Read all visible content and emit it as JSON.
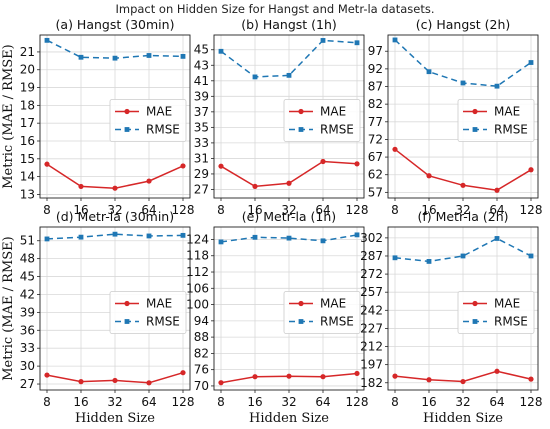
{
  "figure": {
    "suptitle": "Impact on Hidden Size for Hangst and Metr-la datasets.",
    "ylabel": "Metric (MAE / RMSE)",
    "xlabel": "Hidden Size"
  },
  "colors": {
    "mae": "#d62728",
    "rmse": "#1f77b4"
  },
  "chart_data": [
    {
      "type": "line",
      "title": "(a) Hangst (30min)",
      "categories": [
        "8",
        "16",
        "32",
        "64",
        "128"
      ],
      "series": [
        {
          "name": "MAE",
          "values": [
            14.7,
            13.45,
            13.35,
            13.75,
            14.6
          ]
        },
        {
          "name": "RMSE",
          "values": [
            21.65,
            20.7,
            20.65,
            20.8,
            20.75
          ]
        }
      ],
      "yticks": [
        13,
        14,
        15,
        16,
        17,
        18,
        19,
        20,
        21
      ],
      "ylim": [
        12.8,
        21.95
      ],
      "xlabel": "",
      "ylabel": "Metric (MAE / RMSE)",
      "legend": "center-right",
      "grid": true
    },
    {
      "type": "line",
      "title": "(b) Hangst (1h)",
      "categories": [
        "8",
        "16",
        "32",
        "64",
        "128"
      ],
      "series": [
        {
          "name": "MAE",
          "values": [
            30.0,
            27.4,
            27.8,
            30.6,
            30.3
          ]
        },
        {
          "name": "RMSE",
          "values": [
            44.8,
            41.5,
            41.7,
            46.2,
            45.9
          ]
        }
      ],
      "yticks": [
        27,
        29,
        31,
        33,
        35,
        37,
        39,
        41,
        43,
        45
      ],
      "ylim": [
        25.9,
        46.9
      ],
      "xlabel": "",
      "ylabel": "",
      "legend": "center-right",
      "grid": true
    },
    {
      "type": "line",
      "title": "(c) Hangst (2h)",
      "categories": [
        "8",
        "16",
        "32",
        "64",
        "128"
      ],
      "series": [
        {
          "name": "MAE",
          "values": [
            69.2,
            61.7,
            59.0,
            57.6,
            63.4
          ]
        },
        {
          "name": "RMSE",
          "values": [
            100.2,
            91.2,
            88.0,
            87.1,
            93.8
          ]
        }
      ],
      "yticks": [
        57,
        62,
        67,
        72,
        77,
        82,
        87,
        92,
        97
      ],
      "ylim": [
        55.4,
        101.6
      ],
      "xlabel": "",
      "ylabel": "",
      "legend": "center-right",
      "grid": true
    },
    {
      "type": "line",
      "title": "(d) Metr-la (30min)",
      "categories": [
        "8",
        "16",
        "32",
        "64",
        "128"
      ],
      "series": [
        {
          "name": "MAE",
          "values": [
            28.5,
            27.4,
            27.6,
            27.2,
            28.9
          ]
        },
        {
          "name": "RMSE",
          "values": [
            51.3,
            51.6,
            52.1,
            51.8,
            51.9
          ]
        }
      ],
      "yticks": [
        27,
        30,
        33,
        36,
        39,
        42,
        45,
        48,
        51
      ],
      "ylim": [
        26.0,
        53.3
      ],
      "xlabel": "Hidden Size",
      "ylabel": "Metric (MAE / RMSE)",
      "legend": "center-right",
      "grid": true
    },
    {
      "type": "line",
      "title": "(e) Metr-la (1h)",
      "categories": [
        "8",
        "16",
        "32",
        "64",
        "128"
      ],
      "series": [
        {
          "name": "MAE",
          "values": [
            71.2,
            73.4,
            73.6,
            73.4,
            74.6
          ]
        },
        {
          "name": "RMSE",
          "values": [
            123.1,
            124.8,
            124.5,
            123.5,
            125.7
          ]
        }
      ],
      "yticks": [
        70,
        76,
        82,
        88,
        94,
        100,
        106,
        112,
        118,
        124
      ],
      "ylim": [
        68.5,
        128.6
      ],
      "xlabel": "Hidden Size",
      "ylabel": "",
      "legend": "center-right",
      "grid": true
    },
    {
      "type": "line",
      "title": "(f) Metr-la (2h)",
      "categories": [
        "8",
        "16",
        "32",
        "64",
        "128"
      ],
      "series": [
        {
          "name": "MAE",
          "values": [
            187.5,
            184.5,
            183.0,
            191.5,
            185.0
          ]
        },
        {
          "name": "RMSE",
          "values": [
            285.5,
            282.5,
            287.0,
            301.5,
            287.0
          ]
        }
      ],
      "yticks": [
        182,
        197,
        212,
        227,
        242,
        257,
        272,
        287,
        302
      ],
      "ylim": [
        176.0,
        311.0
      ],
      "xlabel": "Hidden Size",
      "ylabel": "",
      "legend": "center-right",
      "grid": true
    }
  ]
}
